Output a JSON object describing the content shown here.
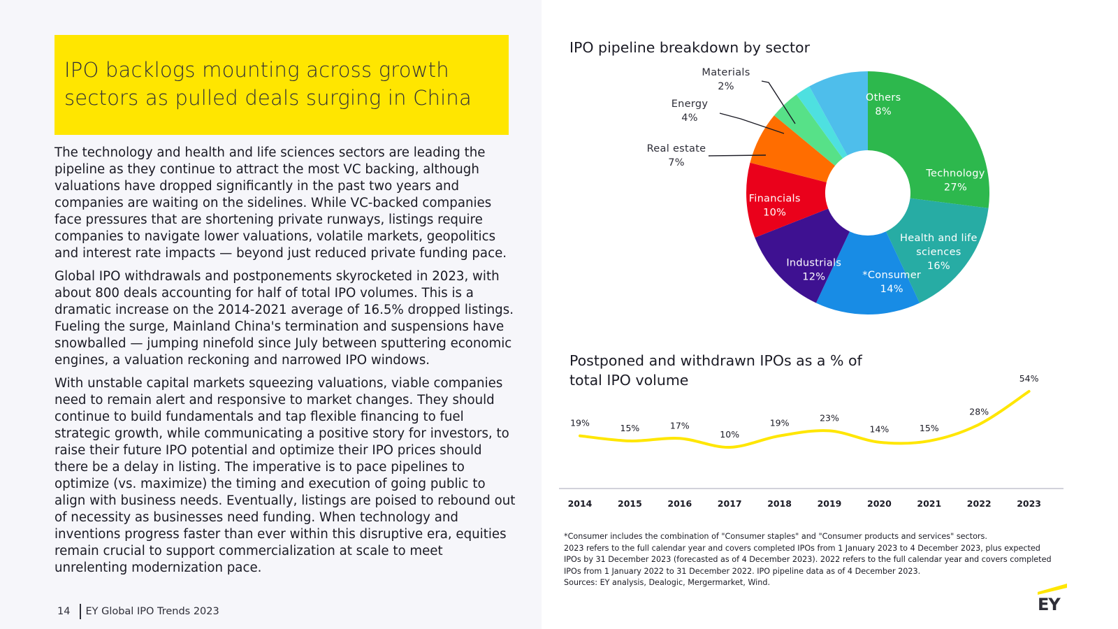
{
  "headline": "IPO backlogs mounting across growth sectors as pulled deals surging in China",
  "paragraphs": [
    "The technology and health and life sciences sectors are leading the pipeline as they continue to attract the most VC backing, although valuations have dropped significantly in the past two years and companies are waiting on the sidelines. While VC-backed companies face pressures that are shortening private runways, listings require companies to navigate lower valuations, volatile markets, geopolitics and interest rate impacts — beyond just reduced private funding pace.",
    "Global IPO withdrawals and postponements skyrocketed in 2023, with about 800 deals accounting for half of total IPO volumes. This is a dramatic increase on the 2014-2021 average of 16.5% dropped listings. Fueling the surge, Mainland China's termination and suspensions have snowballed — jumping ninefold since July between sputtering economic engines, a valuation reckoning and narrowed IPO windows.",
    "With unstable capital markets squeezing valuations, viable companies need to remain alert and responsive to market changes. They should continue to build fundamentals and tap flexible financing to fuel strategic growth, while communicating a positive story for investors, to raise their future IPO potential and optimize their IPO prices should there be a delay in listing. The imperative is to pace pipelines to optimize (vs. maximize) the timing and execution of going public to align with business needs. Eventually, listings are poised to rebound out of necessity as businesses need funding. When technology and inventions progress faster than ever within this disruptive era, equities remain crucial to support commercialization at scale to meet unrelenting modernization pace."
  ],
  "footer": {
    "page": "14",
    "report": "EY Global IPO Trends 2023"
  },
  "logo": "EY",
  "colors": {
    "accent": "#ffe600",
    "dark": "#2e2e38"
  },
  "chart_data": [
    {
      "type": "pie",
      "title": "IPO pipeline breakdown by sector",
      "slices": [
        {
          "label": "Technology",
          "value": 27,
          "display": "27%",
          "color": "#2db84d"
        },
        {
          "label": "Health and life sciences",
          "value": 16,
          "display": "16%",
          "color": "#27aca4"
        },
        {
          "label": "*Consumer",
          "value": 14,
          "display": "14%",
          "color": "#188ce5"
        },
        {
          "label": "Industrials",
          "value": 12,
          "display": "12%",
          "color": "#3e1191"
        },
        {
          "label": "Financials",
          "value": 10,
          "display": "10%",
          "color": "#ea011b"
        },
        {
          "label": "Real estate",
          "value": 7,
          "display": "7%",
          "color": "#ff6d00"
        },
        {
          "label": "Energy",
          "value": 4,
          "display": "4%",
          "color": "#57e188"
        },
        {
          "label": "Materials",
          "value": 2,
          "display": "2%",
          "color": "#4ee0e0"
        },
        {
          "label": "Others",
          "value": 8,
          "display": "8%",
          "color": "#4ebeeb"
        }
      ]
    },
    {
      "type": "line",
      "title": "Postponed and withdrawn IPOs as a % of total IPO volume",
      "categories": [
        "2014",
        "2015",
        "2016",
        "2017",
        "2018",
        "2019",
        "2020",
        "2021",
        "2022",
        "2023"
      ],
      "values": [
        19,
        15,
        17,
        10,
        19,
        23,
        14,
        15,
        28,
        54
      ],
      "labels": [
        "19%",
        "15%",
        "17%",
        "10%",
        "19%",
        "23%",
        "14%",
        "15%",
        "28%",
        "54%"
      ],
      "color": "#ffe600"
    }
  ],
  "footnotes": [
    "*Consumer includes the combination of \"Consumer staples\" and \"Consumer products and services\" sectors.",
    "2023 refers to the full calendar year and covers completed IPOs from 1 January 2023 to 4 December 2023, plus expected IPOs by 31 December 2023 (forecasted as of 4 December 2023). 2022 refers to the full calendar year and covers completed IPOs from 1 January 2022 to 31 December 2022. IPO pipeline data as of 4 December 2023.",
    "Sources: EY analysis, Dealogic, Mergermarket, Wind."
  ]
}
